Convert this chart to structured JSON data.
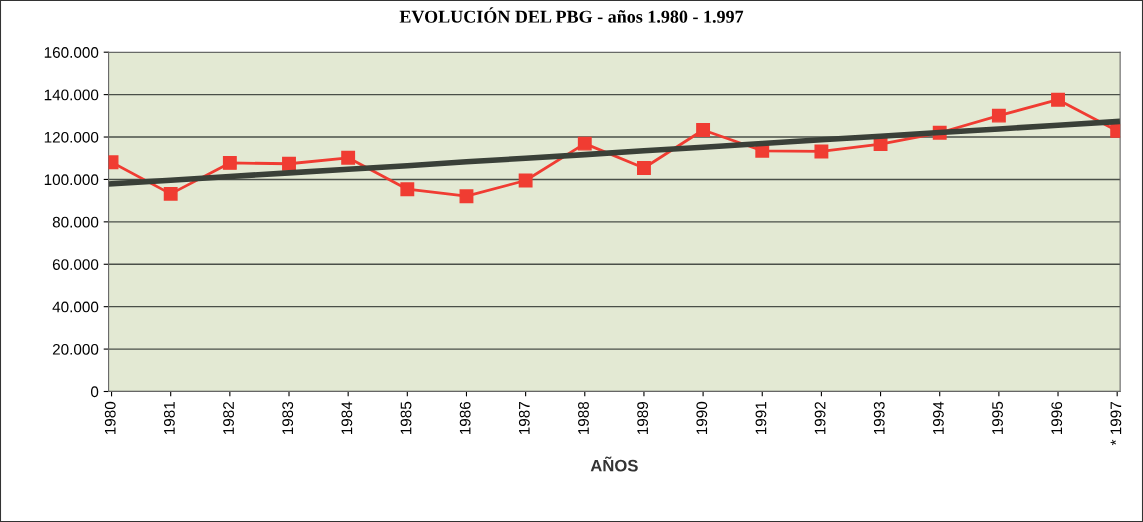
{
  "chart_data": {
    "type": "line",
    "title": "EVOLUCIÓN DEL PBG - años 1.980 - 1.997",
    "xlabel": "AÑOS",
    "categories": [
      "1980",
      "1981",
      "1982",
      "1983",
      "1984",
      "1985",
      "1986",
      "1987",
      "1988",
      "1989",
      "1990",
      "1991",
      "1992",
      "1993",
      "1994",
      "1995",
      "1996",
      "* 1997"
    ],
    "series": [
      {
        "color": "#f03c32",
        "marker": "square",
        "values": [
          108100,
          93200,
          107800,
          107400,
          110200,
          95400,
          92100,
          99500,
          116900,
          105400,
          123300,
          113500,
          113200,
          116700,
          122000,
          130100,
          137600,
          122900
        ]
      },
      {
        "color": "#3a4038",
        "marker": "none",
        "values": [
          97900,
          99600,
          101400,
          103100,
          104800,
          106500,
          108300,
          110000,
          111700,
          113500,
          115200,
          116900,
          118700,
          120400,
          122100,
          123800,
          125600,
          127300
        ]
      }
    ],
    "ylim": [
      0,
      160000
    ],
    "yticks": [
      {
        "value": 0,
        "label": "0"
      },
      {
        "value": 20000,
        "label": "20.000"
      },
      {
        "value": 40000,
        "label": "40.000"
      },
      {
        "value": 60000,
        "label": "60.000"
      },
      {
        "value": 80000,
        "label": "80.000"
      },
      {
        "value": 100000,
        "label": "100.000"
      },
      {
        "value": 120000,
        "label": "120.000"
      },
      {
        "value": 140000,
        "label": "140.000"
      },
      {
        "value": 160000,
        "label": "160.000"
      }
    ],
    "grid": "y",
    "legend": false,
    "line_style": "solid"
  }
}
